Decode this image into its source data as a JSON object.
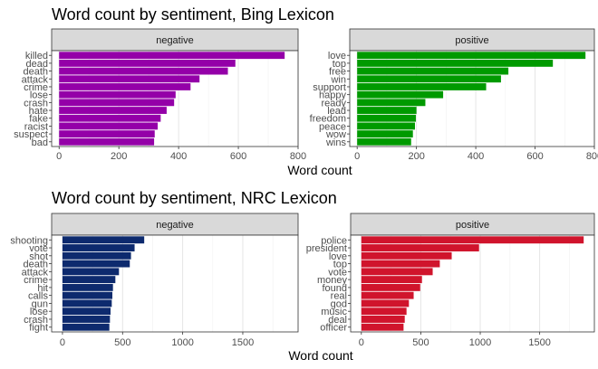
{
  "chart_data": [
    {
      "type": "bar",
      "orientation": "horizontal",
      "title": "Word count by sentiment, Bing Lexicon",
      "xlabel": "Word count",
      "ylabel": "",
      "xlim": [
        -25,
        800
      ],
      "xticks": [
        0,
        200,
        400,
        600,
        800
      ],
      "grid": true,
      "panels": [
        {
          "name": "negative",
          "color": "#9400A8",
          "categories": [
            "killed",
            "dead",
            "death",
            "attack",
            "crime",
            "lose",
            "crash",
            "hate",
            "fake",
            "racist",
            "suspect",
            "bad"
          ],
          "values": [
            755,
            590,
            565,
            470,
            440,
            390,
            385,
            360,
            340,
            330,
            320,
            318
          ]
        },
        {
          "name": "positive",
          "color": "#009A00",
          "categories": [
            "love",
            "top",
            "free",
            "win",
            "support",
            "happy",
            "ready",
            "lead",
            "freedom",
            "peace",
            "wow",
            "wins"
          ],
          "values": [
            770,
            660,
            510,
            485,
            435,
            290,
            230,
            200,
            198,
            195,
            188,
            182
          ]
        }
      ]
    },
    {
      "type": "bar",
      "orientation": "horizontal",
      "title": "Word count by sentiment, NRC Lexicon",
      "xlabel": "Word count",
      "ylabel": "",
      "xlim": [
        -90,
        1960
      ],
      "xticks": [
        0,
        500,
        1000,
        1500
      ],
      "grid": true,
      "panels": [
        {
          "name": "negative",
          "color": "#0D2A6E",
          "categories": [
            "shooting",
            "vote",
            "shot",
            "death",
            "attack",
            "crime",
            "hit",
            "calls",
            "gun",
            "lose",
            "crash",
            "fight"
          ],
          "values": [
            680,
            600,
            570,
            560,
            470,
            440,
            420,
            415,
            410,
            400,
            395,
            390
          ]
        },
        {
          "name": "positive",
          "color": "#D0142C",
          "categories": [
            "police",
            "president",
            "love",
            "top",
            "vote",
            "money",
            "found",
            "real",
            "god",
            "music",
            "deal",
            "officer"
          ],
          "values": [
            1870,
            990,
            760,
            660,
            600,
            510,
            495,
            440,
            400,
            380,
            365,
            355
          ]
        }
      ]
    }
  ]
}
